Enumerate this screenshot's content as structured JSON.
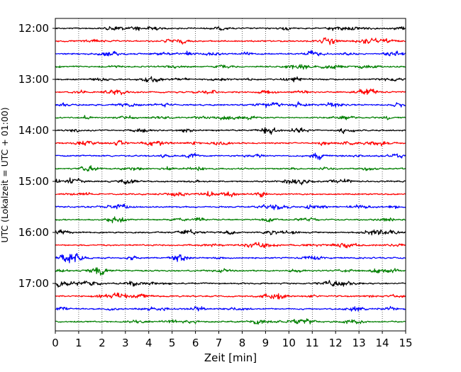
{
  "chart_data": {
    "type": "line",
    "title": "",
    "xlabel": "Zeit  [min]",
    "ylabel": "UTC (Lokalzeit = UTC + 01:00)",
    "xlim": [
      0,
      15
    ],
    "x_ticks": [
      "0",
      "1",
      "2",
      "3",
      "4",
      "5",
      "6",
      "7",
      "8",
      "9",
      "10",
      "11",
      "12",
      "13",
      "14",
      "15"
    ],
    "y_ticks": [
      "12:00",
      "13:00",
      "14:00",
      "15:00",
      "16:00",
      "17:00"
    ],
    "grid": "vertical dotted",
    "row_minutes": 15,
    "start_time": "12:00",
    "row_count": 24,
    "row_colors": [
      "#000000",
      "#ff0000",
      "#0000ff",
      "#007f00"
    ],
    "series": [
      {
        "start": "12:00",
        "color": "#000000"
      },
      {
        "start": "12:15",
        "color": "#ff0000"
      },
      {
        "start": "12:30",
        "color": "#0000ff"
      },
      {
        "start": "12:45",
        "color": "#007f00"
      },
      {
        "start": "13:00",
        "color": "#000000"
      },
      {
        "start": "13:15",
        "color": "#ff0000"
      },
      {
        "start": "13:30",
        "color": "#0000ff"
      },
      {
        "start": "13:45",
        "color": "#007f00"
      },
      {
        "start": "14:00",
        "color": "#000000"
      },
      {
        "start": "14:15",
        "color": "#ff0000"
      },
      {
        "start": "14:30",
        "color": "#0000ff"
      },
      {
        "start": "14:45",
        "color": "#007f00"
      },
      {
        "start": "15:00",
        "color": "#000000"
      },
      {
        "start": "15:15",
        "color": "#ff0000"
      },
      {
        "start": "15:30",
        "color": "#0000ff"
      },
      {
        "start": "15:45",
        "color": "#007f00"
      },
      {
        "start": "16:00",
        "color": "#000000"
      },
      {
        "start": "16:15",
        "color": "#ff0000"
      },
      {
        "start": "16:30",
        "color": "#0000ff"
      },
      {
        "start": "16:45",
        "color": "#007f00"
      },
      {
        "start": "17:00",
        "color": "#000000"
      },
      {
        "start": "17:15",
        "color": "#ff0000"
      },
      {
        "start": "17:30",
        "color": "#0000ff"
      },
      {
        "start": "17:45",
        "color": "#007f00"
      }
    ]
  }
}
